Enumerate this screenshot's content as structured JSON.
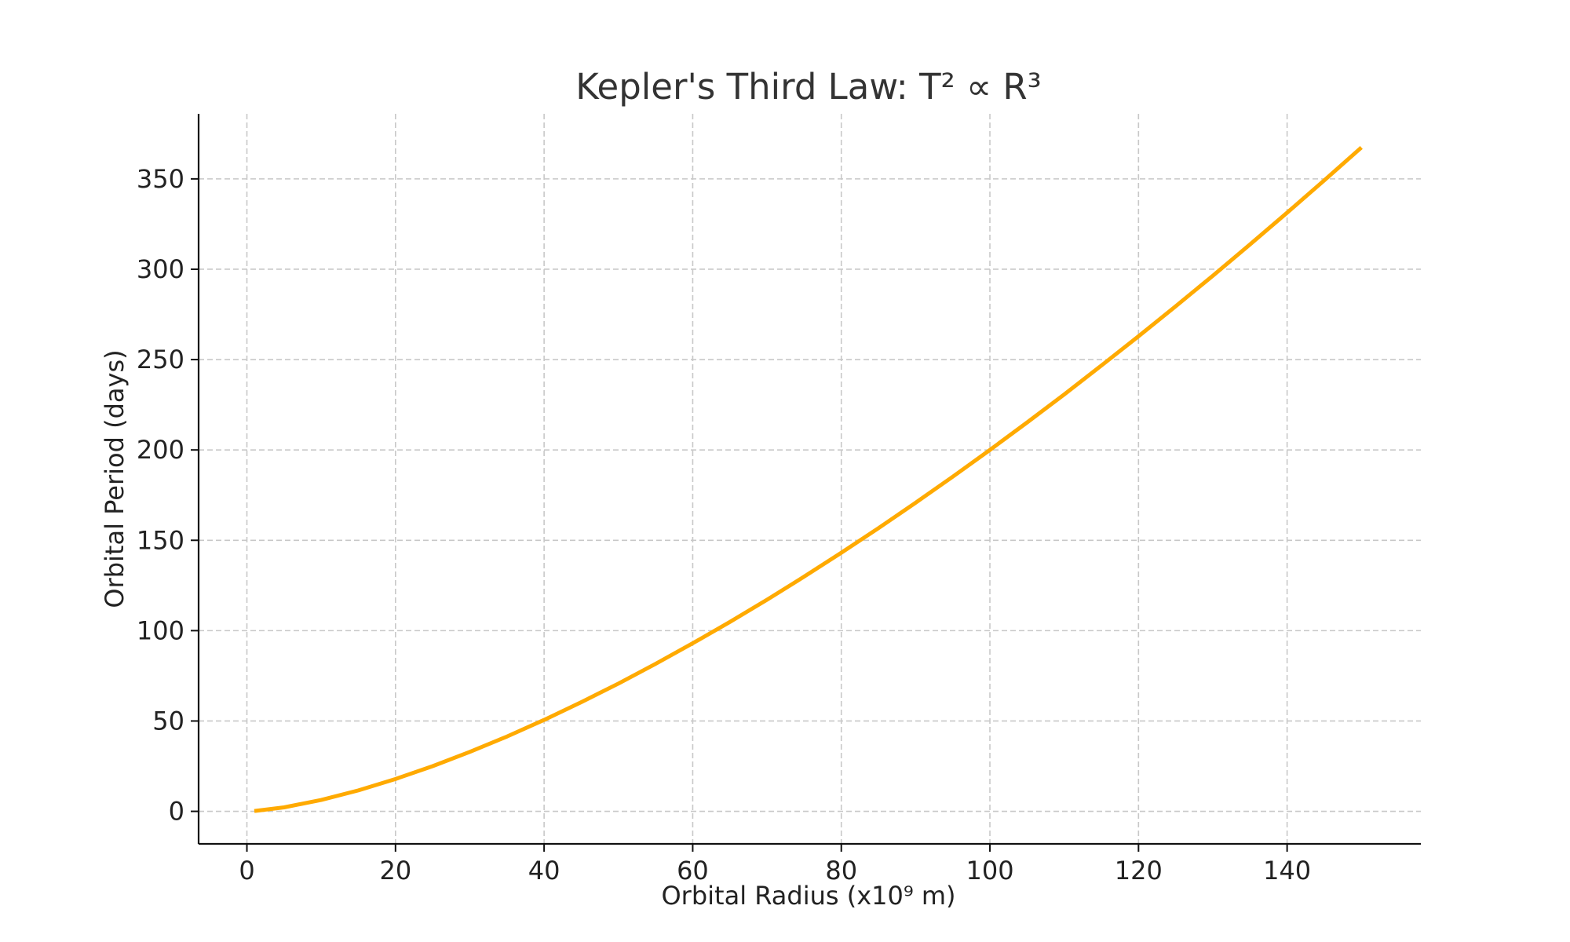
{
  "chart_data": {
    "type": "line",
    "title": "Kepler's Third Law: T² ∝ R³",
    "xlabel": "Orbital Radius (x10⁹ m)",
    "ylabel": "Orbital Period (days)",
    "xlim": [
      -6.5,
      158
    ],
    "ylim": [
      -18,
      386
    ],
    "xticks": [
      0,
      20,
      40,
      60,
      80,
      100,
      120,
      140
    ],
    "yticks": [
      0,
      50,
      100,
      150,
      200,
      250,
      300,
      350
    ],
    "grid": true,
    "legend": "none",
    "series": [
      {
        "color": "#ffaa00",
        "model": "T = 200 · (R / 100)^1.5",
        "x": [
          1,
          5,
          10,
          15,
          20,
          25,
          30,
          35,
          40,
          45,
          50,
          55,
          60,
          65,
          70,
          75,
          80,
          85,
          90,
          95,
          100,
          105,
          110,
          115,
          120,
          125,
          130,
          135,
          140,
          145,
          150
        ],
        "y": [
          0.2,
          2.2,
          6.3,
          11.6,
          17.9,
          25.0,
          32.9,
          41.4,
          50.6,
          60.4,
          70.7,
          81.6,
          93.0,
          104.8,
          117.1,
          129.9,
          143.1,
          156.7,
          170.8,
          185.2,
          200.0,
          215.2,
          230.7,
          246.7,
          262.9,
          279.5,
          296.4,
          313.7,
          331.3,
          349.2,
          367.4
        ]
      }
    ]
  }
}
